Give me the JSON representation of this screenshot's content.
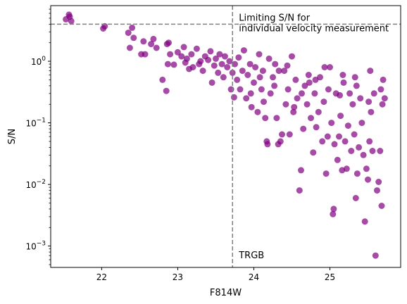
{
  "chart_data": {
    "type": "scatter",
    "title": "",
    "xlabel": "F814W",
    "ylabel": "S/N",
    "xlim": [
      21.33,
      25.93
    ],
    "ylim": [
      0.00045,
      8.0
    ],
    "yscale": "log",
    "grid": false,
    "legend": "none",
    "x_ticks": [
      {
        "value": 22,
        "label": "22"
      },
      {
        "value": 23,
        "label": "23"
      },
      {
        "value": 24,
        "label": "24"
      },
      {
        "value": 25,
        "label": "25"
      }
    ],
    "y_ticks": [
      {
        "value": 0.001,
        "base": "10",
        "exp": "−3"
      },
      {
        "value": 0.01,
        "base": "10",
        "exp": "−2"
      },
      {
        "value": 0.1,
        "base": "10",
        "exp": "−1"
      },
      {
        "value": 1,
        "base": "10",
        "exp": "0"
      }
    ],
    "reference_lines": {
      "horizontal_sn": 4.0,
      "vertical_trgb": 23.72,
      "color": "#808080"
    },
    "annotations": {
      "limit_line1": "Limiting S/N for",
      "limit_line2": "individual velocity measurement",
      "trgb": "TRGB"
    },
    "marker_color": "#800080",
    "series": [
      {
        "points": [
          [
            21.53,
            4.8
          ],
          [
            21.57,
            5.7
          ],
          [
            21.58,
            5.3
          ],
          [
            21.6,
            4.5
          ],
          [
            22.02,
            3.4
          ],
          [
            22.04,
            3.7
          ],
          [
            22.35,
            2.9
          ],
          [
            22.37,
            1.65
          ],
          [
            22.4,
            3.5
          ],
          [
            22.42,
            2.4
          ],
          [
            22.55,
            2.1
          ],
          [
            22.52,
            1.3
          ],
          [
            22.57,
            1.3
          ],
          [
            22.65,
            1.9
          ],
          [
            22.68,
            2.3
          ],
          [
            22.72,
            1.65
          ],
          [
            22.8,
            0.5
          ],
          [
            22.85,
            0.33
          ],
          [
            22.86,
            1.9
          ],
          [
            22.88,
            2.0
          ],
          [
            22.87,
            0.9
          ],
          [
            22.9,
            1.3
          ],
          [
            22.95,
            0.88
          ],
          [
            23.0,
            1.4
          ],
          [
            23.05,
            1.2
          ],
          [
            23.08,
            1.7
          ],
          [
            23.1,
            0.95
          ],
          [
            23.12,
            1.1
          ],
          [
            23.15,
            0.75
          ],
          [
            23.18,
            1.3
          ],
          [
            23.2,
            0.8
          ],
          [
            23.25,
            1.6
          ],
          [
            23.28,
            0.9
          ],
          [
            23.3,
            1.0
          ],
          [
            23.33,
            0.7
          ],
          [
            23.36,
            1.2
          ],
          [
            23.4,
            1.05
          ],
          [
            23.43,
            1.45
          ],
          [
            23.45,
            0.45
          ],
          [
            23.48,
            0.85
          ],
          [
            23.5,
            1.1
          ],
          [
            23.53,
            0.65
          ],
          [
            23.55,
            1.3
          ],
          [
            23.58,
            0.9
          ],
          [
            23.6,
            0.55
          ],
          [
            23.62,
            1.2
          ],
          [
            23.65,
            0.8
          ],
          [
            23.68,
            1.0
          ],
          [
            23.7,
            0.35
          ],
          [
            23.72,
            0.65
          ],
          [
            23.74,
            0.26
          ],
          [
            23.75,
            0.9
          ],
          [
            23.78,
            0.5
          ],
          [
            23.8,
            1.15
          ],
          [
            23.82,
            0.35
          ],
          [
            23.85,
            0.7
          ],
          [
            23.87,
            1.5
          ],
          [
            23.9,
            0.25
          ],
          [
            23.92,
            0.6
          ],
          [
            23.95,
            0.9
          ],
          [
            23.97,
            0.18
          ],
          [
            24.0,
            0.45
          ],
          [
            24.02,
            0.8
          ],
          [
            24.05,
            0.15
          ],
          [
            24.07,
            1.3
          ],
          [
            24.1,
            0.35
          ],
          [
            24.12,
            0.7
          ],
          [
            24.15,
            0.12
          ],
          [
            24.17,
            0.05
          ],
          [
            24.18,
            0.045
          ],
          [
            24.2,
            1.1
          ],
          [
            24.22,
            0.3
          ],
          [
            24.25,
            0.55
          ],
          [
            24.28,
            0.9
          ],
          [
            24.3,
            0.12
          ],
          [
            24.32,
            0.045
          ],
          [
            24.35,
            0.05
          ],
          [
            24.37,
            0.065
          ],
          [
            24.4,
            0.7
          ],
          [
            24.42,
            0.2
          ],
          [
            24.45,
            0.35
          ],
          [
            24.47,
            0.065
          ],
          [
            24.5,
            1.2
          ],
          [
            24.52,
            0.15
          ],
          [
            24.55,
            0.5
          ],
          [
            24.57,
            0.25
          ],
          [
            24.6,
            0.008
          ],
          [
            24.62,
            0.017
          ],
          [
            24.65,
            0.08
          ],
          [
            24.67,
            0.4
          ],
          [
            24.7,
            0.2
          ],
          [
            24.72,
            0.6
          ],
          [
            24.75,
            0.12
          ],
          [
            24.78,
            0.033
          ],
          [
            24.8,
            0.3
          ],
          [
            24.82,
            0.085
          ],
          [
            24.85,
            0.15
          ],
          [
            24.87,
            0.55
          ],
          [
            24.9,
            0.05
          ],
          [
            24.92,
            0.22
          ],
          [
            24.95,
            0.015
          ],
          [
            24.97,
            0.06
          ],
          [
            25.0,
            0.8
          ],
          [
            25.02,
            0.1
          ],
          [
            25.04,
            0.0033
          ],
          [
            25.05,
            0.004
          ],
          [
            25.06,
            0.045
          ],
          [
            25.08,
            0.3
          ],
          [
            25.1,
            0.025
          ],
          [
            25.12,
            0.06
          ],
          [
            25.14,
            0.13
          ],
          [
            25.16,
            0.017
          ],
          [
            25.18,
            0.45
          ],
          [
            25.2,
            0.05
          ],
          [
            25.22,
            0.018
          ],
          [
            25.24,
            0.09
          ],
          [
            25.26,
            0.3
          ],
          [
            25.28,
            0.035
          ],
          [
            25.3,
            0.2
          ],
          [
            25.32,
            0.065
          ],
          [
            25.34,
            0.006
          ],
          [
            25.36,
            0.015
          ],
          [
            25.38,
            0.04
          ],
          [
            25.4,
            0.25
          ],
          [
            25.42,
            0.1
          ],
          [
            25.44,
            0.03
          ],
          [
            25.46,
            0.0025
          ],
          [
            25.48,
            0.018
          ],
          [
            25.5,
            0.012
          ],
          [
            25.52,
            0.05
          ],
          [
            25.54,
            0.15
          ],
          [
            25.56,
            0.035
          ],
          [
            25.58,
            0.3
          ],
          [
            25.6,
            0.0007
          ],
          [
            25.62,
            0.008
          ],
          [
            25.64,
            0.011
          ],
          [
            25.66,
            0.035
          ],
          [
            25.68,
            0.0045
          ],
          [
            25.7,
            0.5
          ],
          [
            25.72,
            0.25
          ],
          [
            24.08,
            0.55
          ],
          [
            24.27,
            0.4
          ],
          [
            24.44,
            0.85
          ],
          [
            24.63,
            0.3
          ],
          [
            24.81,
            0.5
          ],
          [
            24.98,
            0.35
          ],
          [
            25.17,
            0.6
          ],
          [
            25.35,
            0.4
          ],
          [
            25.53,
            0.7
          ],
          [
            25.69,
            0.2
          ],
          [
            23.96,
            0.3
          ],
          [
            24.13,
            0.22
          ],
          [
            24.33,
            0.7
          ],
          [
            24.53,
            0.18
          ],
          [
            24.73,
            0.45
          ],
          [
            24.93,
            0.8
          ],
          [
            25.13,
            0.28
          ],
          [
            25.33,
            0.55
          ],
          [
            25.51,
            0.22
          ],
          [
            25.67,
            0.35
          ]
        ]
      }
    ]
  }
}
